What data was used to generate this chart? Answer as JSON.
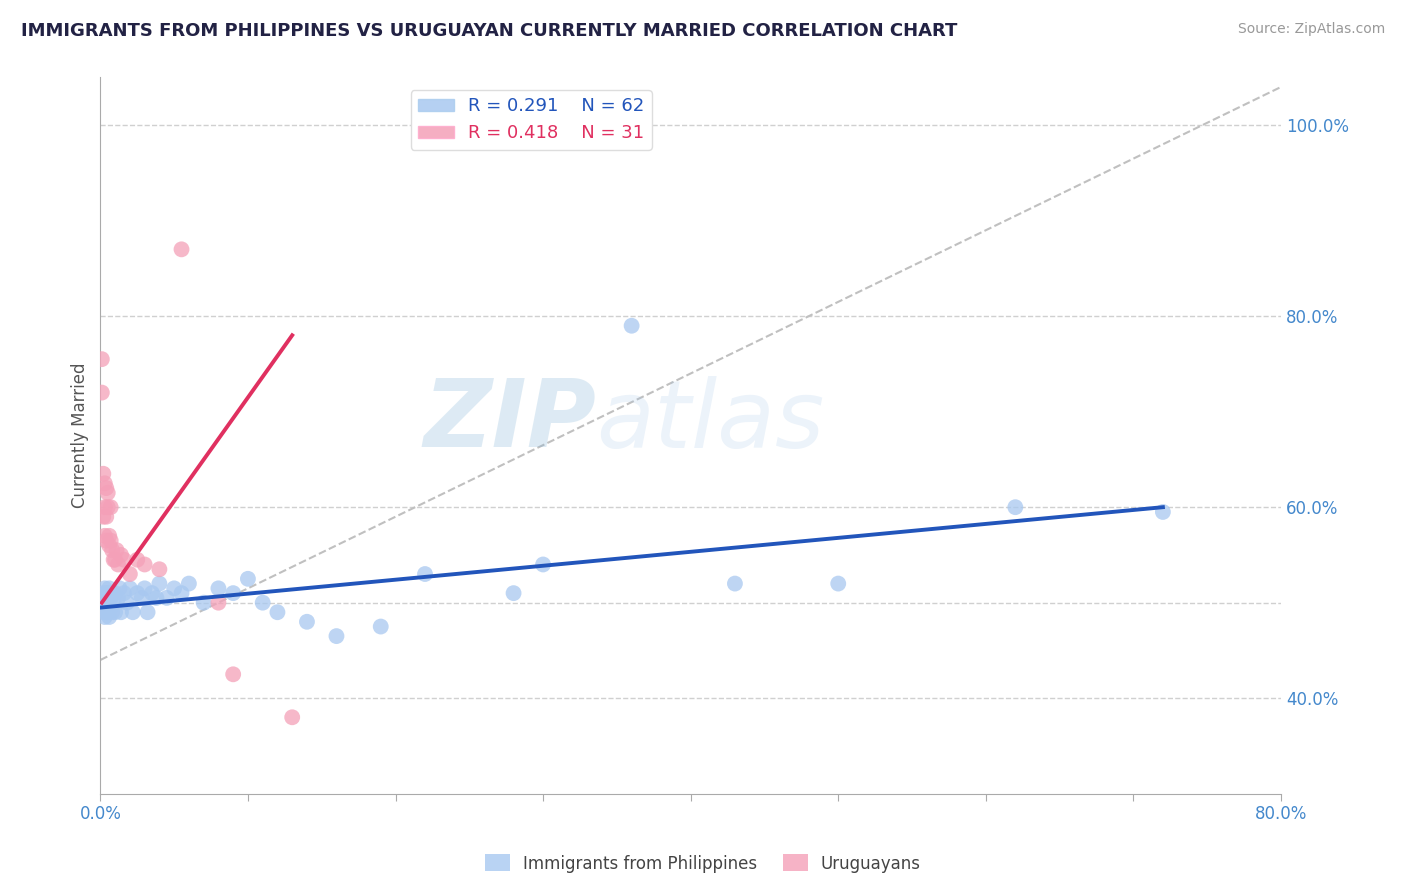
{
  "title": "IMMIGRANTS FROM PHILIPPINES VS URUGUAYAN CURRENTLY MARRIED CORRELATION CHART",
  "source": "Source: ZipAtlas.com",
  "ylabel": "Currently Married",
  "xlim": [
    0.0,
    0.8
  ],
  "ylim": [
    0.3,
    1.05
  ],
  "y_tick_positions": [
    0.4,
    0.5,
    0.6,
    0.8,
    1.0
  ],
  "y_tick_labels": [
    "40.0%",
    "",
    "60.0%",
    "80.0%",
    "100.0%"
  ],
  "blue_R": 0.291,
  "blue_N": 62,
  "pink_R": 0.418,
  "pink_N": 31,
  "blue_color": "#A8C8F0",
  "pink_color": "#F4A0B8",
  "blue_line_color": "#2255BB",
  "pink_line_color": "#E03060",
  "ref_line_color": "#C0C0C0",
  "grid_color": "#D0D0D0",
  "watermark_zip": "ZIP",
  "watermark_atlas": "atlas",
  "blue_scatter_x": [
    0.001,
    0.001,
    0.001,
    0.002,
    0.002,
    0.002,
    0.002,
    0.003,
    0.003,
    0.003,
    0.003,
    0.004,
    0.004,
    0.004,
    0.004,
    0.005,
    0.005,
    0.005,
    0.006,
    0.006,
    0.007,
    0.007,
    0.008,
    0.008,
    0.009,
    0.01,
    0.01,
    0.012,
    0.013,
    0.014,
    0.016,
    0.018,
    0.02,
    0.022,
    0.025,
    0.028,
    0.03,
    0.032,
    0.035,
    0.038,
    0.04,
    0.045,
    0.05,
    0.055,
    0.06,
    0.07,
    0.08,
    0.09,
    0.1,
    0.11,
    0.12,
    0.14,
    0.16,
    0.19,
    0.22,
    0.28,
    0.3,
    0.36,
    0.43,
    0.5,
    0.62,
    0.72
  ],
  "blue_scatter_y": [
    0.5,
    0.495,
    0.505,
    0.51,
    0.49,
    0.5,
    0.495,
    0.515,
    0.485,
    0.505,
    0.495,
    0.51,
    0.49,
    0.5,
    0.505,
    0.51,
    0.49,
    0.5,
    0.515,
    0.485,
    0.505,
    0.495,
    0.51,
    0.49,
    0.5,
    0.51,
    0.49,
    0.505,
    0.515,
    0.49,
    0.51,
    0.5,
    0.515,
    0.49,
    0.51,
    0.505,
    0.515,
    0.49,
    0.51,
    0.505,
    0.52,
    0.505,
    0.515,
    0.51,
    0.52,
    0.5,
    0.515,
    0.51,
    0.525,
    0.5,
    0.49,
    0.48,
    0.465,
    0.475,
    0.53,
    0.51,
    0.54,
    0.79,
    0.52,
    0.52,
    0.6,
    0.595
  ],
  "pink_scatter_x": [
    0.001,
    0.001,
    0.002,
    0.002,
    0.003,
    0.003,
    0.003,
    0.004,
    0.004,
    0.004,
    0.005,
    0.005,
    0.006,
    0.006,
    0.007,
    0.007,
    0.008,
    0.009,
    0.01,
    0.011,
    0.012,
    0.014,
    0.016,
    0.02,
    0.025,
    0.03,
    0.04,
    0.055,
    0.08,
    0.09,
    0.13
  ],
  "pink_scatter_y": [
    0.755,
    0.72,
    0.635,
    0.59,
    0.625,
    0.6,
    0.57,
    0.62,
    0.59,
    0.565,
    0.615,
    0.6,
    0.57,
    0.56,
    0.6,
    0.565,
    0.555,
    0.545,
    0.545,
    0.555,
    0.54,
    0.55,
    0.545,
    0.53,
    0.545,
    0.54,
    0.535,
    0.87,
    0.5,
    0.425,
    0.38
  ],
  "blue_trend_x": [
    0.001,
    0.72
  ],
  "blue_trend_y": [
    0.495,
    0.6
  ],
  "pink_trend_x": [
    0.001,
    0.13
  ],
  "pink_trend_y": [
    0.5,
    0.78
  ]
}
